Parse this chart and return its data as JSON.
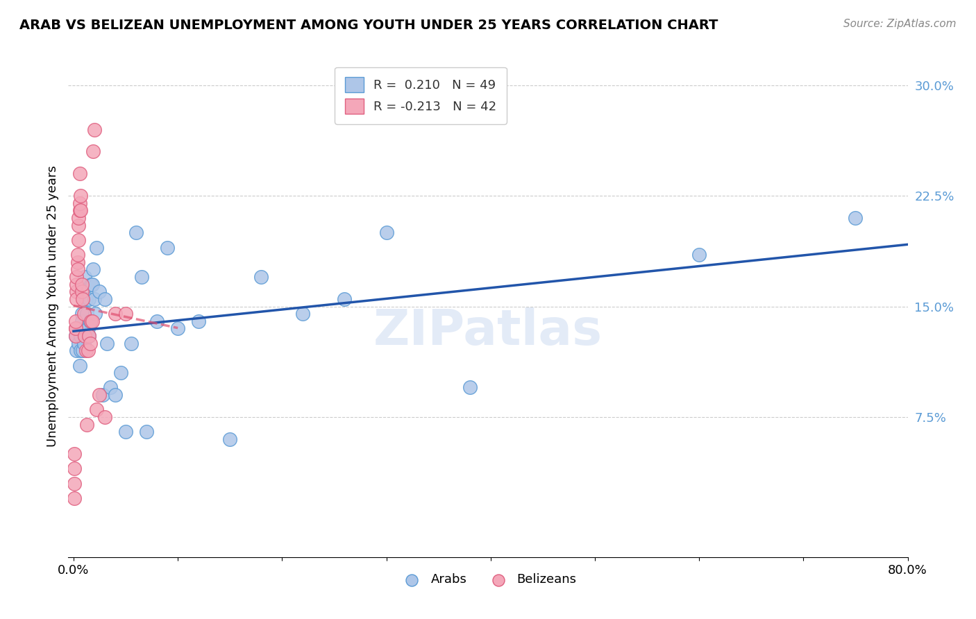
{
  "title": "ARAB VS BELIZEAN UNEMPLOYMENT AMONG YOUTH UNDER 25 YEARS CORRELATION CHART",
  "source": "Source: ZipAtlas.com",
  "ylabel": "Unemployment Among Youth under 25 years",
  "xlim": [
    -0.005,
    0.8
  ],
  "ylim": [
    -0.02,
    0.32
  ],
  "ytick_vals": [
    0.075,
    0.15,
    0.225,
    0.3
  ],
  "ytick_labels": [
    "7.5%",
    "15.0%",
    "22.5%",
    "30.0%"
  ],
  "xtick_vals": [
    0.0,
    0.1,
    0.2,
    0.3,
    0.4,
    0.5,
    0.6,
    0.7,
    0.8
  ],
  "xtick_labels": [
    "0.0%",
    "",
    "",
    "",
    "",
    "",
    "",
    "",
    "80.0%"
  ],
  "arab_color": "#aec6e8",
  "belizean_color": "#f4a7b9",
  "arab_edge_color": "#5b9bd5",
  "belizean_edge_color": "#e06080",
  "trend_arab_color": "#2255aa",
  "trend_belizean_color": "#e05070",
  "R_arab": 0.21,
  "N_arab": 49,
  "R_belizean": -0.213,
  "N_belizean": 42,
  "arab_x": [
    0.002,
    0.003,
    0.005,
    0.005,
    0.006,
    0.007,
    0.007,
    0.008,
    0.008,
    0.009,
    0.01,
    0.01,
    0.011,
    0.012,
    0.013,
    0.014,
    0.015,
    0.015,
    0.016,
    0.017,
    0.018,
    0.019,
    0.02,
    0.021,
    0.022,
    0.025,
    0.028,
    0.03,
    0.032,
    0.035,
    0.04,
    0.045,
    0.05,
    0.055,
    0.06,
    0.065,
    0.07,
    0.08,
    0.09,
    0.1,
    0.12,
    0.15,
    0.18,
    0.22,
    0.26,
    0.3,
    0.38,
    0.6,
    0.75
  ],
  "arab_y": [
    0.13,
    0.12,
    0.135,
    0.125,
    0.11,
    0.13,
    0.12,
    0.145,
    0.14,
    0.12,
    0.13,
    0.125,
    0.17,
    0.155,
    0.145,
    0.135,
    0.13,
    0.155,
    0.14,
    0.165,
    0.165,
    0.175,
    0.155,
    0.145,
    0.19,
    0.16,
    0.09,
    0.155,
    0.125,
    0.095,
    0.09,
    0.105,
    0.065,
    0.125,
    0.2,
    0.17,
    0.065,
    0.14,
    0.19,
    0.135,
    0.14,
    0.06,
    0.17,
    0.145,
    0.155,
    0.2,
    0.095,
    0.185,
    0.21
  ],
  "belizean_x": [
    0.001,
    0.001,
    0.001,
    0.001,
    0.002,
    0.002,
    0.002,
    0.002,
    0.003,
    0.003,
    0.003,
    0.003,
    0.004,
    0.004,
    0.004,
    0.005,
    0.005,
    0.005,
    0.006,
    0.006,
    0.006,
    0.007,
    0.007,
    0.008,
    0.008,
    0.009,
    0.01,
    0.011,
    0.012,
    0.013,
    0.014,
    0.015,
    0.016,
    0.017,
    0.018,
    0.019,
    0.02,
    0.022,
    0.025,
    0.03,
    0.04,
    0.05
  ],
  "belizean_y": [
    0.03,
    0.04,
    0.05,
    0.02,
    0.135,
    0.13,
    0.135,
    0.14,
    0.16,
    0.155,
    0.165,
    0.17,
    0.18,
    0.175,
    0.185,
    0.195,
    0.205,
    0.21,
    0.215,
    0.22,
    0.24,
    0.225,
    0.215,
    0.16,
    0.165,
    0.155,
    0.145,
    0.13,
    0.12,
    0.07,
    0.12,
    0.13,
    0.125,
    0.14,
    0.14,
    0.255,
    0.27,
    0.08,
    0.09,
    0.075,
    0.145,
    0.145
  ],
  "watermark": "ZIPatlas",
  "background_color": "#ffffff",
  "grid_color": "#cccccc"
}
